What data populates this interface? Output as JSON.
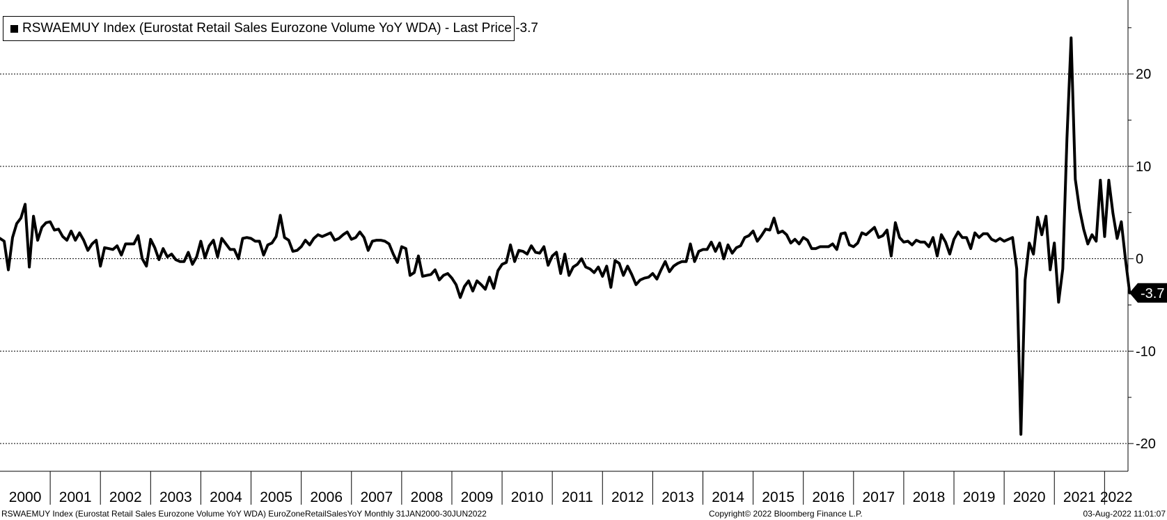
{
  "legend": {
    "ticker": "RSWAEMUY Index",
    "description": "(Eurostat Retail Sales Eurozone Volume YoY WDA)",
    "last_price_label": "Last Price",
    "last_price": "-3.7",
    "text": "RSWAEMUY Index (Eurostat Retail Sales Eurozone Volume YoY WDA) - Last Price -3.7"
  },
  "footer": {
    "left": "RSWAEMUY Index (Eurostat Retail Sales Eurozone Volume YoY WDA) EuroZoneRetailSalesYoY  Monthly 31JAN2000-30JUN2022",
    "center": "Copyright© 2022 Bloomberg Finance L.P.",
    "right": "03-Aug-2022 11:01:07"
  },
  "chart_data": {
    "type": "line",
    "title": "",
    "xlabel": "",
    "ylabel": "",
    "frequency": "Monthly",
    "x_range": [
      "2000-01",
      "2022-06"
    ],
    "ylim": [
      -23,
      28
    ],
    "y_gridlines": [
      20,
      10,
      0,
      -10,
      -20
    ],
    "y_tick_labels": [
      "20",
      "10",
      "0",
      "-10",
      "-20"
    ],
    "x_tick_labels": [
      "2000",
      "2001",
      "2002",
      "2003",
      "2004",
      "2005",
      "2006",
      "2007",
      "2008",
      "2009",
      "2010",
      "2011",
      "2012",
      "2013",
      "2014",
      "2015",
      "2016",
      "2017",
      "2018",
      "2019",
      "2020",
      "2021",
      "2022"
    ],
    "grid": "horizontal dotted",
    "legend_position": "top-left",
    "line_color": "#000000",
    "last_value_label": "-3.7",
    "series": [
      {
        "name": "RSWAEMUY Index",
        "start": "2000-01",
        "values": [
          2.2,
          1.9,
          -1.2,
          2.3,
          3.8,
          4.4,
          5.9,
          -0.9,
          4.6,
          2.0,
          3.4,
          3.9,
          4.0,
          3.1,
          3.2,
          2.4,
          2.0,
          3.0,
          2.0,
          2.8,
          2.0,
          0.9,
          1.6,
          2.0,
          -0.8,
          1.2,
          1.1,
          1.0,
          1.4,
          0.4,
          1.6,
          1.6,
          1.6,
          2.5,
          0.0,
          -0.8,
          2.1,
          1.2,
          -0.1,
          1.1,
          0.2,
          0.5,
          -0.1,
          -0.3,
          -0.3,
          0.7,
          -0.6,
          0.2,
          1.9,
          0.1,
          1.4,
          2.0,
          0.2,
          2.2,
          1.6,
          1.0,
          1.0,
          0.0,
          2.2,
          2.3,
          2.2,
          1.9,
          1.9,
          0.4,
          1.5,
          1.7,
          2.4,
          4.7,
          2.3,
          2.0,
          0.8,
          0.9,
          1.3,
          2.0,
          1.5,
          2.2,
          2.6,
          2.4,
          2.6,
          2.8,
          2.0,
          2.2,
          2.6,
          2.9,
          2.1,
          2.3,
          2.9,
          2.3,
          0.9,
          1.9,
          2.0,
          2.0,
          1.9,
          1.6,
          0.5,
          -0.4,
          1.3,
          1.1,
          -1.8,
          -1.5,
          0.3,
          -1.9,
          -1.8,
          -1.7,
          -1.2,
          -2.3,
          -1.8,
          -1.6,
          -2.1,
          -2.8,
          -4.2,
          -3.0,
          -2.4,
          -3.5,
          -2.4,
          -2.8,
          -3.3,
          -2.0,
          -3.2,
          -1.3,
          -0.6,
          -0.4,
          1.5,
          -0.3,
          0.9,
          0.8,
          0.5,
          1.4,
          0.7,
          0.6,
          1.3,
          -0.7,
          0.3,
          0.7,
          -1.6,
          0.5,
          -1.8,
          -0.9,
          -0.6,
          0.0,
          -0.9,
          -1.1,
          -1.5,
          -0.9,
          -1.9,
          -0.8,
          -3.1,
          -0.2,
          -0.5,
          -1.8,
          -0.8,
          -1.7,
          -2.8,
          -2.3,
          -2.1,
          -2.0,
          -1.6,
          -2.2,
          -1.2,
          -0.3,
          -1.4,
          -0.8,
          -0.5,
          -0.3,
          -0.3,
          1.6,
          -0.3,
          0.8,
          1.0,
          1.0,
          1.8,
          0.8,
          1.7,
          0.0,
          1.5,
          0.6,
          1.2,
          1.4,
          2.3,
          2.5,
          3.0,
          1.9,
          2.5,
          3.2,
          3.1,
          4.4,
          2.8,
          3.0,
          2.6,
          1.7,
          2.1,
          1.6,
          2.3,
          2.0,
          1.1,
          1.1,
          1.3,
          1.3,
          1.3,
          1.6,
          1.0,
          2.7,
          2.8,
          1.5,
          1.3,
          1.7,
          2.8,
          2.6,
          3.0,
          3.4,
          2.3,
          2.5,
          3.1,
          0.3,
          3.9,
          2.3,
          1.8,
          1.9,
          1.5,
          2.0,
          1.8,
          1.8,
          1.3,
          2.3,
          0.3,
          2.6,
          1.8,
          0.5,
          2.1,
          2.9,
          2.3,
          2.3,
          1.1,
          2.8,
          2.3,
          2.7,
          2.7,
          2.1,
          1.9,
          2.2,
          1.9,
          2.1,
          2.3,
          -1.1,
          -19.0,
          -2.3,
          1.7,
          0.5,
          4.5,
          2.6,
          4.6,
          -1.2,
          1.7,
          -4.7,
          -1.1,
          13.0,
          23.9,
          8.6,
          5.4,
          3.2,
          1.6,
          2.6,
          1.9,
          8.5,
          2.4,
          8.5,
          4.9,
          2.2,
          4.0,
          -0.1,
          -3.7
        ]
      }
    ]
  }
}
